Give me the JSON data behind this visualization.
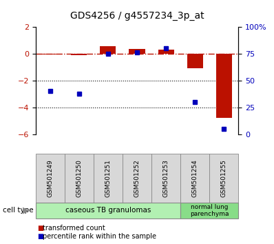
{
  "title": "GDS4256 / g4557234_3p_at",
  "samples": [
    "GSM501249",
    "GSM501250",
    "GSM501251",
    "GSM501252",
    "GSM501253",
    "GSM501254",
    "GSM501255"
  ],
  "red_values": [
    -0.05,
    -0.1,
    0.55,
    0.35,
    0.3,
    -1.1,
    -4.8
  ],
  "blue_values": [
    40,
    38,
    75,
    76,
    80,
    30,
    5
  ],
  "ylim_left": [
    -6,
    2
  ],
  "ylim_right": [
    0,
    100
  ],
  "yticks_left": [
    2,
    0,
    -2,
    -4,
    -6
  ],
  "yticks_right": [
    100,
    75,
    50,
    25,
    0
  ],
  "ytick_labels_right": [
    "100%",
    "75",
    "50",
    "25",
    "0"
  ],
  "dotted_lines": [
    -2,
    -4
  ],
  "group1_count": 5,
  "group1_label": "caseous TB granulomas",
  "group2_count": 2,
  "group2_label": "normal lung\nparenchyma",
  "group1_color": "#b2f0b2",
  "group2_color": "#88dd88",
  "sample_box_color": "#d8d8d8",
  "red_color": "#bb1100",
  "blue_color": "#0000bb",
  "legend_red": "transformed count",
  "legend_blue": "percentile rank within the sample"
}
